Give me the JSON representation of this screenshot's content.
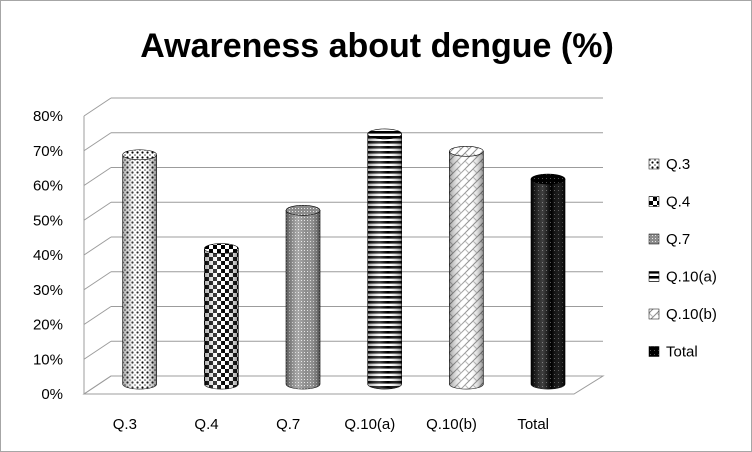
{
  "chart_data": {
    "type": "bar",
    "style": "3d-cylinder",
    "title": "Awareness about dengue (%)",
    "categories": [
      "Q.3",
      "Q.4",
      "Q.7",
      "Q.10(a)",
      "Q.10(b)",
      "Total"
    ],
    "values": [
      66,
      39,
      50,
      72,
      67,
      59
    ],
    "unit": "%",
    "ylim": [
      0,
      80
    ],
    "yticks": [
      "0%",
      "10%",
      "20%",
      "30%",
      "40%",
      "50%",
      "60%",
      "70%",
      "80%"
    ],
    "grid": true,
    "legend_position": "right",
    "legend": [
      "Q.3",
      "Q.4",
      "Q.7",
      "Q.10(a)",
      "Q.10(b)",
      "Total"
    ],
    "patterns": [
      "dots",
      "checker",
      "fine-grid",
      "horizontal-stripes",
      "light-diagonal-weave",
      "solid-dark-dots"
    ],
    "colors": {
      "ink": "#000000",
      "grid": "#9c9c9c",
      "frame": "#a6a6a6",
      "background": "#ffffff"
    }
  }
}
